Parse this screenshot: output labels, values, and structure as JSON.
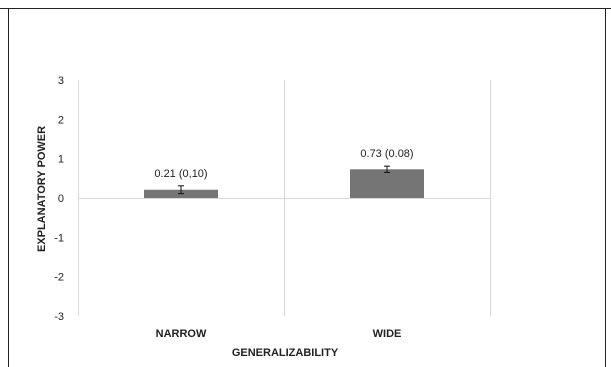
{
  "chart_data": {
    "type": "bar",
    "categories": [
      "NARROW",
      "WIDE"
    ],
    "values": [
      0.21,
      0.73
    ],
    "errors": [
      0.1,
      0.08
    ],
    "data_labels": [
      "0.21 (0,10)",
      "0.73 (0.08)"
    ],
    "xlabel": "GENERALIZABILITY",
    "ylabel": "EXPLANATORY POWER",
    "ylim": [
      -3,
      3
    ],
    "yticks": [
      3,
      2,
      1,
      0,
      -1,
      -2,
      -3
    ],
    "ytick_labels": [
      "3",
      "2",
      "1",
      "0",
      "-1",
      "-2",
      "-3"
    ],
    "grid": "vertical separators",
    "legend": "none",
    "colors": {
      "bar": "#757575",
      "axis": "#d9d9d9",
      "border": "#222222"
    }
  }
}
